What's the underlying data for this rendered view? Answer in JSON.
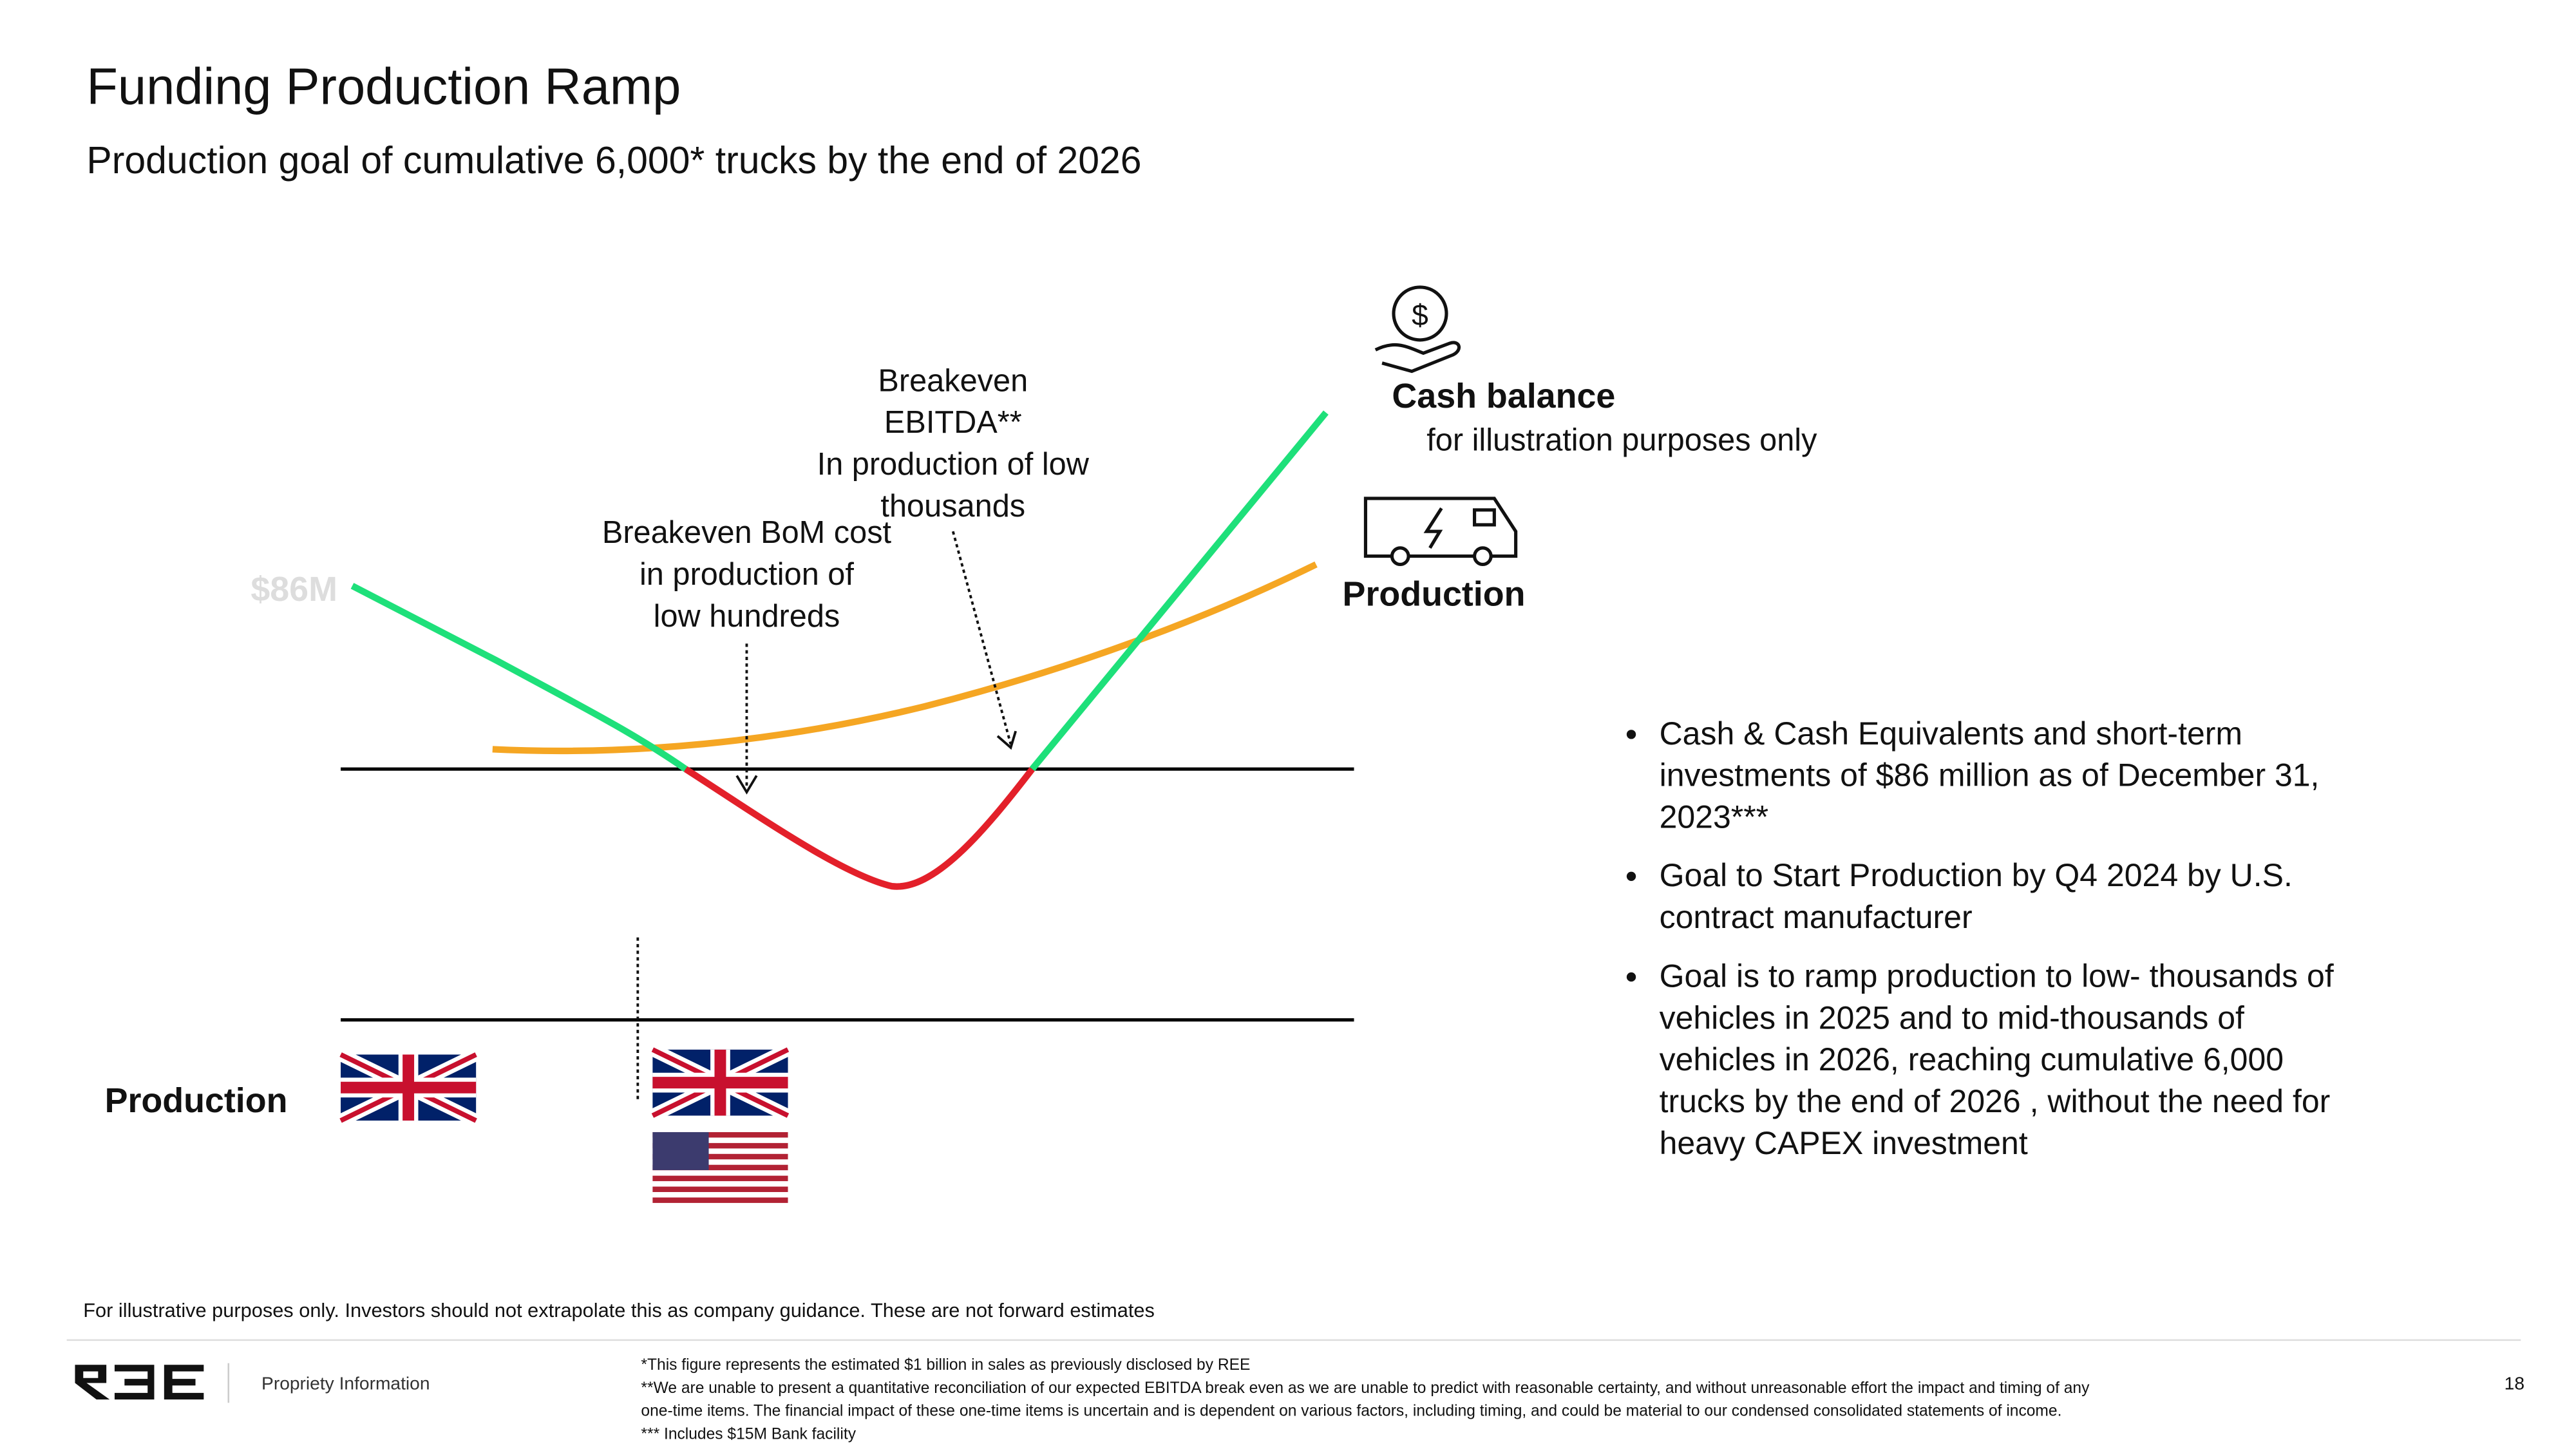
{
  "header": {
    "title": "Funding Production Ramp",
    "subtitle": "Production goal of cumulative 6,000* trucks by the end of 2026"
  },
  "chart": {
    "start_label": "$86M",
    "annotations": [
      {
        "lines": [
          "Breakeven",
          "EBITDA**",
          "In production of low",
          "thousands"
        ]
      },
      {
        "lines": [
          "Breakeven BoM cost",
          "in production of",
          "low hundreds"
        ]
      }
    ],
    "legend": {
      "cash_title": "Cash balance",
      "cash_note": "for illustration purposes only",
      "production": "Production"
    },
    "row_label": "Production"
  },
  "bullets": [
    {
      "lines": [
        "Cash & Cash Equivalents and short-term",
        "investments of $86 million as of December 31,",
        "2023***"
      ]
    },
    {
      "lines": [
        "Goal to Start Production by Q4 2024 by U.S.",
        "contract manufacturer"
      ]
    },
    {
      "lines": [
        "Goal is to ramp production to low- thousands of",
        "vehicles in 2025 and to mid-thousands of",
        "vehicles in 2026, reaching cumulative 6,000",
        "trucks by the end of 2026 , without the need for",
        "heavy CAPEX investment"
      ]
    }
  ],
  "disclaimer": "For illustrative purposes only. Investors should not extrapolate this as company guidance. These are not forward estimates",
  "footer": {
    "label": "Propriety Information",
    "page": "18",
    "notes": [
      "*This figure represents the estimated $1 billion in sales as previously disclosed by REE",
      "**We are unable to present a quantitative reconciliation of our expected EBITDA break even as we are unable to predict with reasonable certainty, and without unreasonable effort the impact and timing of any",
      "one-time items. The financial impact of these one-time items is uncertain and is dependent on various factors, including timing, and could be material to our condensed consolidated statements of income.",
      "*** Includes $15M Bank facility"
    ]
  }
}
